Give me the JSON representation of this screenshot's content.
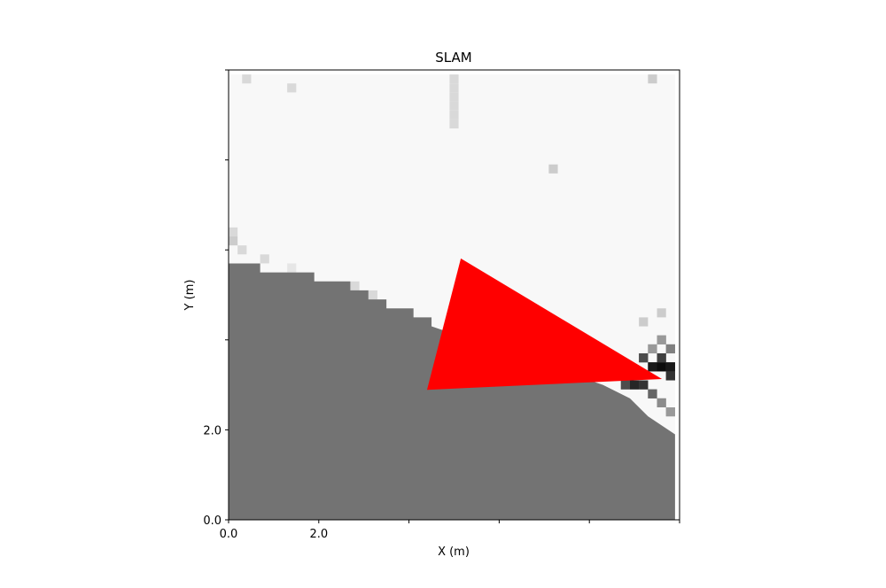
{
  "chart_data": {
    "type": "occupancy",
    "title": "SLAM",
    "xlabel": "X (m)",
    "ylabel": "Y (m)",
    "xlim": [
      0,
      10
    ],
    "ylim": [
      0,
      10
    ],
    "xticks": [
      {
        "value": 0,
        "label": "0.0"
      },
      {
        "value": 2,
        "label": "2.0"
      },
      {
        "value": 4,
        "label": null
      },
      {
        "value": 6,
        "label": null
      },
      {
        "value": 8,
        "label": null
      },
      {
        "value": 10,
        "label": null
      }
    ],
    "yticks": [
      {
        "value": 0,
        "label": "0.0"
      },
      {
        "value": 2,
        "label": "2.0"
      },
      {
        "value": 4,
        "label": null
      },
      {
        "value": 6,
        "label": null
      },
      {
        "value": 8,
        "label": null
      },
      {
        "value": 10,
        "label": null
      }
    ],
    "extent": [
      0,
      9.9,
      0,
      9.9
    ],
    "free_color": "#f8f8f8",
    "unknown_color": "#737373",
    "cell_size": 0.2,
    "unknown_region": {
      "x": [
        0,
        0,
        0.7,
        0.7,
        1.9,
        1.9,
        2.7,
        2.7,
        3.1,
        3.1,
        3.5,
        3.5,
        4.1,
        4.1,
        4.5,
        4.5,
        8.3,
        8.9,
        9.3,
        9.9,
        9.9
      ],
      "y": [
        0,
        5.7,
        5.7,
        5.5,
        5.5,
        5.3,
        5.3,
        5.1,
        5.1,
        4.9,
        4.9,
        4.7,
        4.7,
        4.5,
        4.5,
        4.3,
        3.0,
        2.7,
        2.3,
        1.9,
        0
      ]
    },
    "cells": {
      "x": [
        9.3,
        9.5,
        9.7,
        9.1,
        9.5,
        9.7,
        8.7,
        8.9,
        9.1,
        9.3,
        9.5,
        9.7,
        9.5,
        9.7,
        9.3,
        9.1,
        9.5,
        4.9,
        4.9,
        4.9,
        4.9,
        4.9,
        4.9,
        0.0,
        0.0,
        0.2,
        0.7,
        1.3,
        2.7,
        3.1,
        7.1,
        9.3,
        1.3,
        0.3
      ],
      "y": [
        3.3,
        3.3,
        3.3,
        3.5,
        3.5,
        3.1,
        2.9,
        2.9,
        2.9,
        2.7,
        2.5,
        2.3,
        3.9,
        3.7,
        3.7,
        4.3,
        4.5,
        8.7,
        8.9,
        9.1,
        9.3,
        9.5,
        9.7,
        6.3,
        6.1,
        5.9,
        5.7,
        5.5,
        5.1,
        4.9,
        7.7,
        9.7,
        9.5,
        9.7
      ],
      "values": [
        0.1,
        0.05,
        0.1,
        0.3,
        0.25,
        0.2,
        0.3,
        0.15,
        0.2,
        0.4,
        0.55,
        0.6,
        0.6,
        0.5,
        0.6,
        0.8,
        0.8,
        0.85,
        0.85,
        0.85,
        0.85,
        0.85,
        0.85,
        0.85,
        0.8,
        0.85,
        0.85,
        0.9,
        0.85,
        0.85,
        0.8,
        0.8,
        0.85,
        0.85
      ]
    },
    "robot": {
      "x": [
        5.15,
        4.4,
        9.61
      ],
      "y": [
        5.81,
        2.89,
        3.13
      ],
      "color": "#ff0000"
    }
  }
}
